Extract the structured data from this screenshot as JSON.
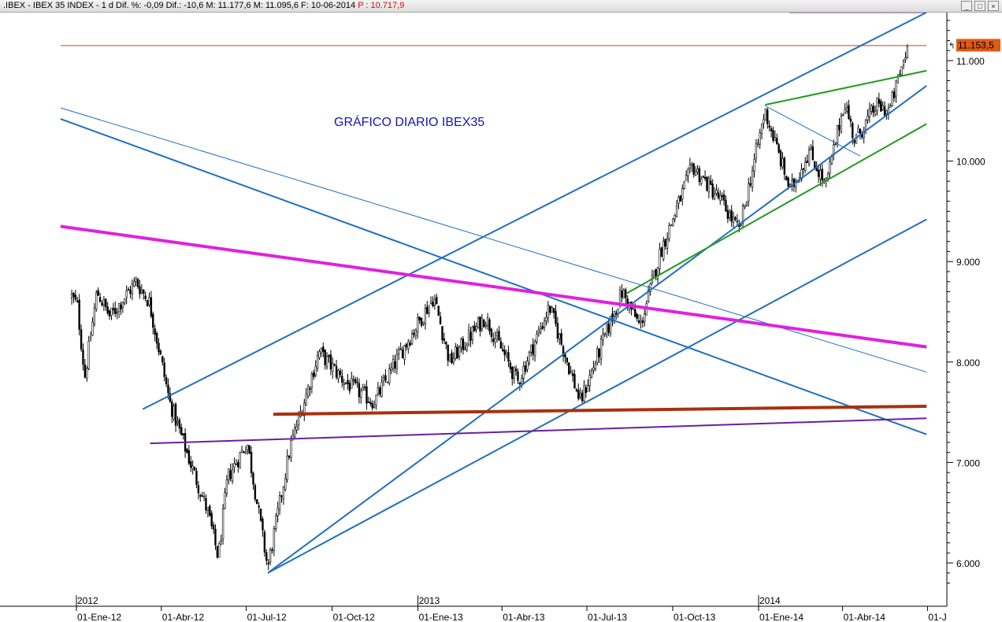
{
  "window": {
    "title_prefix": ".IBEX - IBEX 35 INDEX - 1 d Dif. %: -0,09 Dif.: -10,6 M: 11.177,6 M: 11.095,6 F: 10-06-2014",
    "title_price": "P : 10.717,9",
    "buttons": [
      "_",
      "□",
      "×"
    ]
  },
  "colors": {
    "candles": "#000000",
    "blue_lines": "#1f6fc0",
    "magenta_line": "#e020e0",
    "green_lines": "#1f9a1f",
    "brown_line": "#a8300e",
    "purple_lines": "#6a1fa0",
    "resistance_line": "#c0461a",
    "title_text": "#1414b4",
    "price_badge": "#e05a12"
  },
  "chart_data": {
    "type": "candlestick",
    "title": "GRÁFICO DIARIO IBEX35",
    "y_axis": {
      "min": 5700,
      "max": 11550,
      "ticks": [
        "6.000",
        "7.000",
        "8.000",
        "9.000",
        "10.000",
        "11.000"
      ],
      "tick_values": [
        6000,
        7000,
        8000,
        9000,
        10000,
        11000
      ],
      "side": "right"
    },
    "x_axis": {
      "date_labels": [
        "01-Ene-12",
        "01-Abr-12",
        "01-Jul-12",
        "01-Oct-12",
        "01-Ene-13",
        "01-Abr-13",
        "01-Jul-13",
        "01-Oct-13",
        "01-Ene-14",
        "01-Abr-14",
        "01-J"
      ],
      "year_labels": [
        "2012",
        "2013",
        "2014"
      ]
    },
    "last_price_label": "11.153,5",
    "last_price": 11153.5,
    "key_points": [
      {
        "date": "2011-12-27",
        "value": 8650
      },
      {
        "date": "2012-01-02",
        "value": 8560
      },
      {
        "date": "2012-01-10",
        "value": 7850
      },
      {
        "date": "2012-01-23",
        "value": 8700
      },
      {
        "date": "2012-02-06",
        "value": 8450
      },
      {
        "date": "2012-03-05",
        "value": 8800
      },
      {
        "date": "2012-03-19",
        "value": 8600
      },
      {
        "date": "2012-04-10",
        "value": 7600
      },
      {
        "date": "2012-05-02",
        "value": 7000
      },
      {
        "date": "2012-05-21",
        "value": 6500
      },
      {
        "date": "2012-06-01",
        "value": 6050
      },
      {
        "date": "2012-06-11",
        "value": 6850
      },
      {
        "date": "2012-07-02",
        "value": 7200
      },
      {
        "date": "2012-07-24",
        "value": 5950
      },
      {
        "date": "2012-08-17",
        "value": 7150
      },
      {
        "date": "2012-09-17",
        "value": 8100
      },
      {
        "date": "2012-10-15",
        "value": 7800
      },
      {
        "date": "2012-11-15",
        "value": 7600
      },
      {
        "date": "2012-12-14",
        "value": 8100
      },
      {
        "date": "2013-01-18",
        "value": 8650
      },
      {
        "date": "2013-02-04",
        "value": 8000
      },
      {
        "date": "2013-03-14",
        "value": 8450
      },
      {
        "date": "2013-04-18",
        "value": 7800
      },
      {
        "date": "2013-05-22",
        "value": 8550
      },
      {
        "date": "2013-06-24",
        "value": 7600
      },
      {
        "date": "2013-07-22",
        "value": 8300
      },
      {
        "date": "2013-08-08",
        "value": 8700
      },
      {
        "date": "2013-08-27",
        "value": 8350
      },
      {
        "date": "2013-09-18",
        "value": 9100
      },
      {
        "date": "2013-10-22",
        "value": 9950
      },
      {
        "date": "2013-11-22",
        "value": 9600
      },
      {
        "date": "2013-12-11",
        "value": 9300
      },
      {
        "date": "2014-01-08",
        "value": 10500
      },
      {
        "date": "2014-02-04",
        "value": 9700
      },
      {
        "date": "2014-02-24",
        "value": 10100
      },
      {
        "date": "2014-03-14",
        "value": 9750
      },
      {
        "date": "2014-04-03",
        "value": 10600
      },
      {
        "date": "2014-04-14",
        "value": 10200
      },
      {
        "date": "2014-05-07",
        "value": 10550
      },
      {
        "date": "2014-05-21",
        "value": 10500
      },
      {
        "date": "2014-06-10",
        "value": 11150
      }
    ],
    "trendlines": [
      {
        "color": "blue",
        "width": 2,
        "from": {
          "date": "2012-07-24",
          "value": 5900
        },
        "to": {
          "date": "2014-06-30",
          "value": 10750
        }
      },
      {
        "color": "blue",
        "width": 2,
        "from": {
          "date": "2012-03-12",
          "value": 7530
        },
        "to": {
          "date": "2014-06-30",
          "value": 11480
        }
      },
      {
        "color": "blue",
        "width": 2,
        "from": {
          "date": "2012-07-24",
          "value": 5900
        },
        "to": {
          "date": "2014-06-30",
          "value": 9420
        }
      },
      {
        "color": "blue",
        "width": 2,
        "from": {
          "date": "2011-12-15",
          "value": 10420
        },
        "to": {
          "date": "2014-06-30",
          "value": 7280
        }
      },
      {
        "color": "blue",
        "width": 1,
        "from": {
          "date": "2011-12-15",
          "value": 10530
        },
        "to": {
          "date": "2014-06-30",
          "value": 7900
        }
      },
      {
        "color": "blue",
        "width": 1,
        "from": {
          "date": "2014-01-08",
          "value": 10550
        },
        "to": {
          "date": "2014-04-20",
          "value": 10050
        }
      },
      {
        "color": "magenta",
        "width": 4,
        "from": {
          "date": "2011-12-15",
          "value": 9350
        },
        "to": {
          "date": "2014-06-30",
          "value": 8150
        }
      },
      {
        "color": "green",
        "width": 2,
        "from": {
          "date": "2013-08-12",
          "value": 8680
        },
        "to": {
          "date": "2014-06-30",
          "value": 10370
        }
      },
      {
        "color": "green",
        "width": 2,
        "from": {
          "date": "2014-01-08",
          "value": 10560
        },
        "to": {
          "date": "2014-06-30",
          "value": 10900
        }
      },
      {
        "color": "brown",
        "width": 4,
        "from": {
          "date": "2012-07-30",
          "value": 7480
        },
        "to": {
          "date": "2014-06-30",
          "value": 7560
        }
      },
      {
        "color": "purple",
        "width": 2,
        "from": {
          "date": "2012-03-20",
          "value": 7190
        },
        "to": {
          "date": "2014-06-30",
          "value": 7440
        }
      },
      {
        "color": "purple",
        "width": 4,
        "from": {
          "date": "2014-02-03",
          "value": 11490
        },
        "to": {
          "date": "2014-06-30",
          "value": 11490
        }
      },
      {
        "color": "resistance",
        "width": 1,
        "from": {
          "date": "2011-12-15",
          "value": 11150
        },
        "to": {
          "date": "2014-06-30",
          "value": 11150
        }
      }
    ],
    "grid": false,
    "legend": "none"
  }
}
